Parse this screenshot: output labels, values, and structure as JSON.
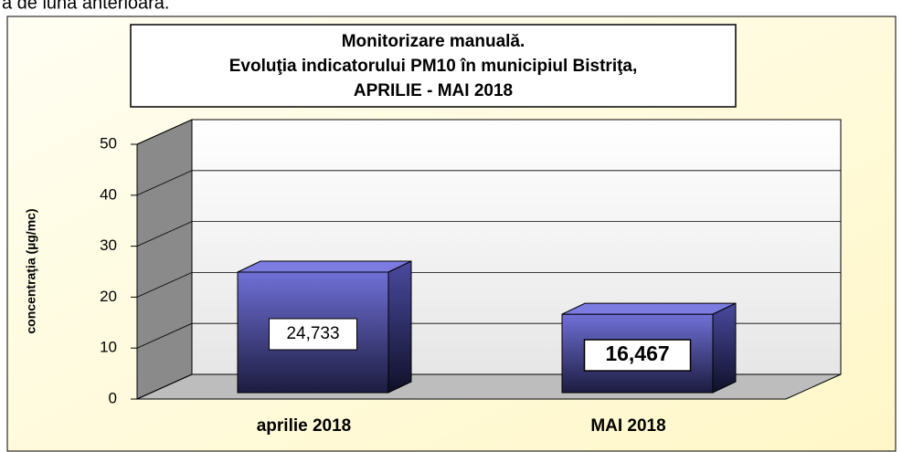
{
  "header_text": "ă de luna anterioară.",
  "chart_data": {
    "type": "bar3d",
    "title": [
      "Monitorizare manuală.",
      "Evoluţia indicatorului PM10 în municipiul Bistriţa,",
      "APRILIE - MAI  2018"
    ],
    "y_label": "concentraţia (µg/mc)",
    "categories": [
      "aprilie 2018",
      "MAI 2018"
    ],
    "values": [
      24.733,
      16.467
    ],
    "value_labels": [
      "24,733",
      "16,467"
    ],
    "color": "#6666cc",
    "ylim": [
      0,
      50
    ],
    "yticks": [
      0,
      10,
      20,
      30,
      40,
      50
    ],
    "grid": true
  }
}
